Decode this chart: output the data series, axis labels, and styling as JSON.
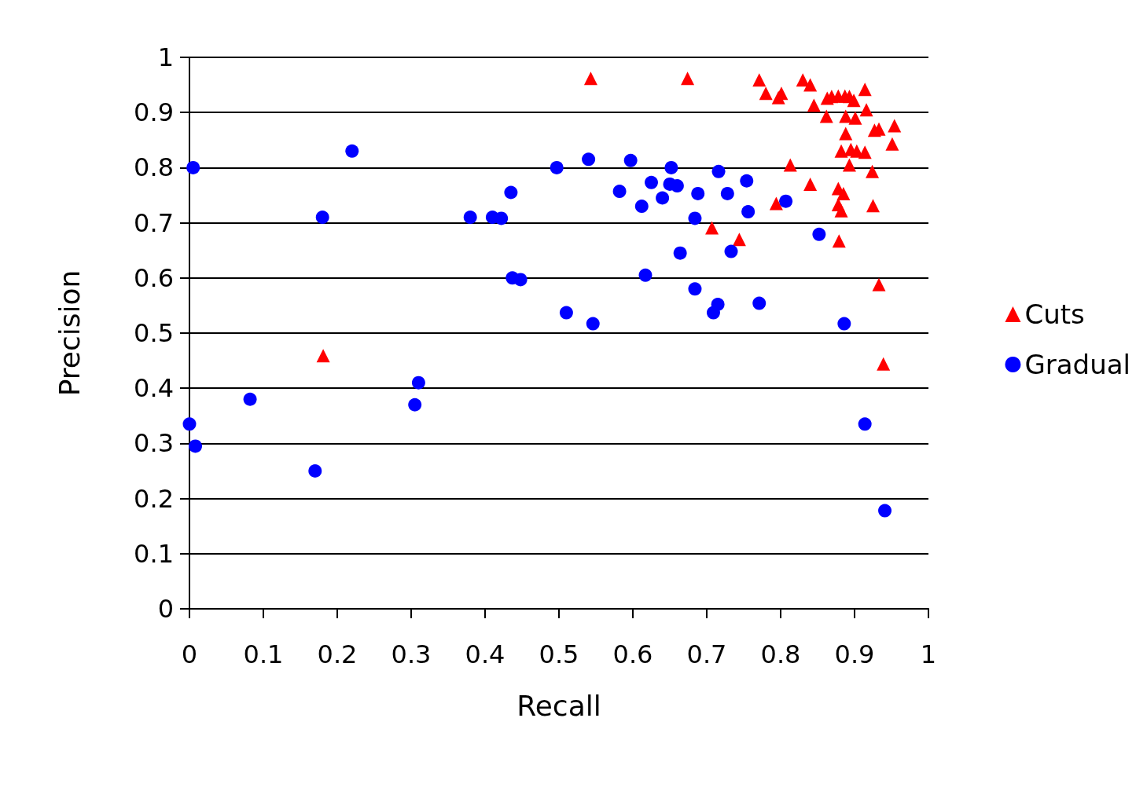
{
  "chart_data": {
    "type": "scatter",
    "xlabel": "Recall",
    "ylabel": "Precision",
    "xlim": [
      0,
      1
    ],
    "ylim": [
      0,
      1
    ],
    "xticks": [
      0,
      0.1,
      0.2,
      0.3,
      0.4,
      0.5,
      0.6,
      0.7,
      0.8,
      0.9,
      1
    ],
    "yticks": [
      0,
      0.1,
      0.2,
      0.3,
      0.4,
      0.5,
      0.6,
      0.7,
      0.8,
      0.9,
      1
    ],
    "grid": "y",
    "legend": "right",
    "series": [
      {
        "name": "Cuts",
        "color": "#ff0000",
        "marker": "triangle",
        "x": [
          0.543,
          0.674,
          0.181,
          0.771,
          0.78,
          0.797,
          0.801,
          0.83,
          0.84,
          0.845,
          0.862,
          0.863,
          0.869,
          0.878,
          0.887,
          0.893,
          0.899,
          0.888,
          0.901,
          0.914,
          0.916,
          0.927,
          0.933,
          0.954,
          0.951,
          0.888,
          0.882,
          0.895,
          0.903,
          0.914,
          0.893,
          0.924,
          0.813,
          0.84,
          0.878,
          0.885,
          0.878,
          0.882,
          0.794,
          0.925,
          0.707,
          0.744,
          0.879,
          0.933,
          0.939
        ],
        "values": [
          0.962,
          0.962,
          0.459,
          0.959,
          0.935,
          0.927,
          0.935,
          0.959,
          0.95,
          0.913,
          0.893,
          0.926,
          0.929,
          0.93,
          0.93,
          0.929,
          0.922,
          0.893,
          0.89,
          0.942,
          0.905,
          0.868,
          0.87,
          0.876,
          0.843,
          0.862,
          0.83,
          0.833,
          0.83,
          0.828,
          0.805,
          0.793,
          0.805,
          0.77,
          0.762,
          0.753,
          0.733,
          0.722,
          0.735,
          0.731,
          0.691,
          0.67,
          0.667,
          0.588,
          0.444
        ]
      },
      {
        "name": "Gradual",
        "color": "#0000ff",
        "marker": "circle",
        "x": [
          0.005,
          0.22,
          0.18,
          0.0,
          0.008,
          0.082,
          0.17,
          0.305,
          0.31,
          0.38,
          0.41,
          0.422,
          0.435,
          0.437,
          0.448,
          0.497,
          0.54,
          0.51,
          0.546,
          0.582,
          0.597,
          0.612,
          0.625,
          0.617,
          0.64,
          0.652,
          0.65,
          0.66,
          0.664,
          0.684,
          0.688,
          0.684,
          0.709,
          0.715,
          0.716,
          0.728,
          0.733,
          0.754,
          0.756,
          0.771,
          0.807,
          0.852,
          0.886,
          0.914,
          0.941
        ],
        "values": [
          0.8,
          0.83,
          0.71,
          0.335,
          0.295,
          0.38,
          0.25,
          0.37,
          0.41,
          0.71,
          0.71,
          0.708,
          0.755,
          0.6,
          0.597,
          0.8,
          0.815,
          0.537,
          0.517,
          0.757,
          0.813,
          0.73,
          0.773,
          0.605,
          0.745,
          0.8,
          0.77,
          0.767,
          0.645,
          0.708,
          0.753,
          0.58,
          0.537,
          0.552,
          0.793,
          0.753,
          0.648,
          0.776,
          0.72,
          0.554,
          0.739,
          0.679,
          0.517,
          0.335,
          0.178
        ]
      }
    ]
  }
}
